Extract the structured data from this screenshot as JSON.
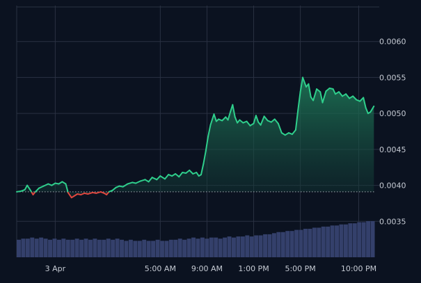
{
  "colors": {
    "background": "#0b1220",
    "grid": "#2a3142",
    "up": "#2fcf8c",
    "down": "#e0473f",
    "fill_top": "#1f7d5a",
    "fill_bottom": "#0b1220",
    "volume": "#34406b",
    "baseline": "#c8ccd4",
    "axis_text": "#c5cad3"
  },
  "chart_data": {
    "type": "area",
    "title": "",
    "xlabel": "",
    "ylabel": "",
    "y_ticks": [
      0.0035,
      0.004,
      0.0045,
      0.005,
      0.0055,
      0.006
    ],
    "y_tick_labels": [
      "0.0035",
      "0.0040",
      "0.0045",
      "0.0050",
      "0.0055",
      "0.0060"
    ],
    "ylim": [
      0.003,
      0.0065
    ],
    "x_ticks": [
      {
        "label": "3 Apr",
        "x": 3
      },
      {
        "label": "5:00 AM",
        "x": 12
      },
      {
        "label": "9:00 AM",
        "x": 16
      },
      {
        "label": "1:00 PM",
        "x": 20
      },
      {
        "label": "5:00 PM",
        "x": 24
      },
      {
        "label": "10:00 PM",
        "x": 29
      }
    ],
    "xlim": [
      -0.3,
      30.4
    ],
    "baseline": 0.00391,
    "grid": true,
    "series": [
      {
        "values": [
          [
            -0.3,
            0.00391
          ],
          [
            0.1,
            0.00392
          ],
          [
            0.4,
            0.00394
          ],
          [
            0.6,
            0.004
          ],
          [
            0.8,
            0.00395
          ],
          [
            1.0,
            0.0039
          ],
          [
            1.1,
            0.00387
          ],
          [
            1.3,
            0.00391
          ],
          [
            1.6,
            0.00396
          ],
          [
            2.0,
            0.00399
          ],
          [
            2.4,
            0.00402
          ],
          [
            2.7,
            0.004
          ],
          [
            3.0,
            0.00403
          ],
          [
            3.3,
            0.00402
          ],
          [
            3.6,
            0.00405
          ],
          [
            3.9,
            0.00402
          ],
          [
            4.1,
            0.0039
          ],
          [
            4.4,
            0.00383
          ],
          [
            4.6,
            0.00385
          ],
          [
            4.9,
            0.00388
          ],
          [
            5.2,
            0.00387
          ],
          [
            5.5,
            0.00389
          ],
          [
            5.8,
            0.00388
          ],
          [
            6.2,
            0.0039
          ],
          [
            6.5,
            0.00389
          ],
          [
            6.9,
            0.00391
          ],
          [
            7.2,
            0.00389
          ],
          [
            7.4,
            0.00387
          ],
          [
            7.6,
            0.00391
          ],
          [
            7.9,
            0.00393
          ],
          [
            8.2,
            0.00397
          ],
          [
            8.5,
            0.00399
          ],
          [
            8.8,
            0.00398
          ],
          [
            9.2,
            0.00402
          ],
          [
            9.6,
            0.00404
          ],
          [
            9.9,
            0.00403
          ],
          [
            10.3,
            0.00406
          ],
          [
            10.7,
            0.00408
          ],
          [
            11.0,
            0.00405
          ],
          [
            11.3,
            0.00411
          ],
          [
            11.7,
            0.00408
          ],
          [
            12.0,
            0.00413
          ],
          [
            12.4,
            0.00409
          ],
          [
            12.7,
            0.00415
          ],
          [
            13.0,
            0.00413
          ],
          [
            13.3,
            0.00416
          ],
          [
            13.6,
            0.00412
          ],
          [
            13.9,
            0.00418
          ],
          [
            14.2,
            0.00417
          ],
          [
            14.5,
            0.00421
          ],
          [
            14.8,
            0.00416
          ],
          [
            15.1,
            0.00418
          ],
          [
            15.3,
            0.00413
          ],
          [
            15.5,
            0.00415
          ],
          [
            15.7,
            0.0043
          ],
          [
            15.9,
            0.00448
          ],
          [
            16.1,
            0.00468
          ],
          [
            16.3,
            0.00484
          ],
          [
            16.6,
            0.00499
          ],
          [
            16.8,
            0.00489
          ],
          [
            17.0,
            0.00492
          ],
          [
            17.3,
            0.0049
          ],
          [
            17.6,
            0.00495
          ],
          [
            17.8,
            0.00491
          ],
          [
            18.0,
            0.00502
          ],
          [
            18.2,
            0.00512
          ],
          [
            18.4,
            0.00495
          ],
          [
            18.6,
            0.00487
          ],
          [
            18.8,
            0.00491
          ],
          [
            19.1,
            0.00487
          ],
          [
            19.4,
            0.00489
          ],
          [
            19.7,
            0.00483
          ],
          [
            20.0,
            0.00486
          ],
          [
            20.2,
            0.00497
          ],
          [
            20.4,
            0.00488
          ],
          [
            20.6,
            0.00484
          ],
          [
            20.9,
            0.00496
          ],
          [
            21.2,
            0.0049
          ],
          [
            21.5,
            0.00488
          ],
          [
            21.8,
            0.00492
          ],
          [
            22.1,
            0.00486
          ],
          [
            22.4,
            0.00473
          ],
          [
            22.7,
            0.0047
          ],
          [
            23.0,
            0.00473
          ],
          [
            23.3,
            0.00471
          ],
          [
            23.6,
            0.00477
          ],
          [
            23.8,
            0.00505
          ],
          [
            24.0,
            0.0053
          ],
          [
            24.2,
            0.0055
          ],
          [
            24.5,
            0.00537
          ],
          [
            24.7,
            0.00541
          ],
          [
            24.9,
            0.00523
          ],
          [
            25.1,
            0.00518
          ],
          [
            25.4,
            0.00534
          ],
          [
            25.7,
            0.0053
          ],
          [
            25.9,
            0.00515
          ],
          [
            26.2,
            0.00531
          ],
          [
            26.5,
            0.00535
          ],
          [
            26.8,
            0.00534
          ],
          [
            27.0,
            0.00527
          ],
          [
            27.3,
            0.0053
          ],
          [
            27.6,
            0.00524
          ],
          [
            27.9,
            0.00527
          ],
          [
            28.2,
            0.00521
          ],
          [
            28.5,
            0.00524
          ],
          [
            28.8,
            0.00519
          ],
          [
            29.1,
            0.00517
          ],
          [
            29.4,
            0.00522
          ],
          [
            29.6,
            0.00508
          ],
          [
            29.8,
            0.005
          ],
          [
            30.0,
            0.00502
          ],
          [
            30.3,
            0.0051
          ]
        ]
      }
    ],
    "volume": {
      "units": "relative",
      "values": [
        0.16,
        0.17,
        0.17,
        0.18,
        0.17,
        0.18,
        0.17,
        0.16,
        0.17,
        0.16,
        0.17,
        0.16,
        0.16,
        0.17,
        0.16,
        0.17,
        0.16,
        0.17,
        0.16,
        0.16,
        0.17,
        0.16,
        0.17,
        0.16,
        0.15,
        0.16,
        0.15,
        0.15,
        0.16,
        0.15,
        0.15,
        0.16,
        0.15,
        0.15,
        0.16,
        0.16,
        0.17,
        0.16,
        0.17,
        0.18,
        0.17,
        0.18,
        0.17,
        0.18,
        0.18,
        0.17,
        0.18,
        0.19,
        0.18,
        0.19,
        0.19,
        0.2,
        0.19,
        0.2,
        0.2,
        0.21,
        0.21,
        0.22,
        0.23,
        0.23,
        0.24,
        0.24,
        0.25,
        0.25,
        0.26,
        0.26,
        0.27,
        0.27,
        0.28,
        0.28,
        0.29,
        0.29,
        0.3,
        0.3,
        0.31,
        0.31,
        0.32,
        0.32,
        0.33,
        0.33
      ]
    }
  }
}
